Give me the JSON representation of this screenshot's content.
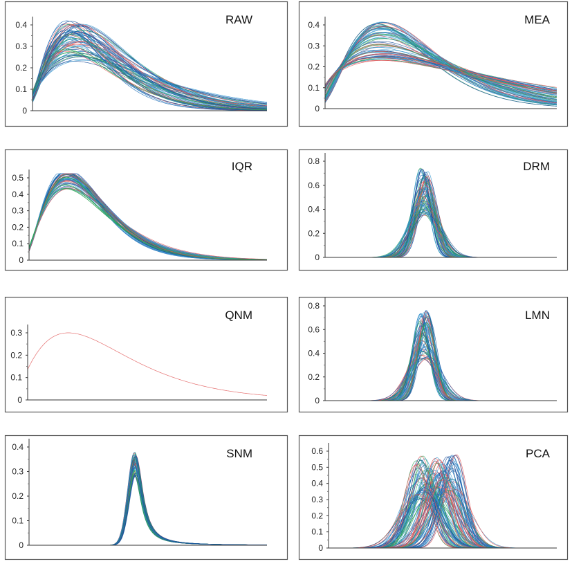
{
  "chart_data": [
    {
      "type": "line",
      "title": "RAW",
      "yticks": [
        "0",
        "0.1",
        "0.2",
        "0.3",
        "0.4"
      ],
      "ylim": [
        0,
        0.4
      ],
      "xlim": [
        0,
        1
      ],
      "grid": false,
      "legend": "none",
      "family": {
        "shape": "right-skewed",
        "n_curves": 70,
        "peak_x": [
          0.14,
          0.22
        ],
        "peak_height": [
          0.23,
          0.42
        ],
        "tail": 1.5,
        "offset": 0.03
      }
    },
    {
      "type": "line",
      "title": "MEA",
      "yticks": [
        "0",
        "0.1",
        "0.2",
        "0.3",
        "0.4"
      ],
      "ylim": [
        0,
        0.4
      ],
      "xlim": [
        0,
        1
      ],
      "grid": false,
      "legend": "none",
      "family": {
        "shape": "right-skewed",
        "n_curves": 70,
        "peak_x": [
          0.22,
          0.26
        ],
        "peak_height": [
          0.23,
          0.42
        ],
        "tail": 1.4,
        "offset": 0.04
      }
    },
    {
      "type": "line",
      "title": "IQR",
      "yticks": [
        "0",
        "0.1",
        "0.2",
        "0.3",
        "0.4",
        "0.5"
      ],
      "ylim": [
        0,
        0.5
      ],
      "xlim": [
        0,
        1
      ],
      "grid": false,
      "legend": "none",
      "family": {
        "shape": "right-skewed",
        "n_curves": 60,
        "peak_x": [
          0.15,
          0.17
        ],
        "peak_height": [
          0.43,
          0.55
        ],
        "tail": 2.0,
        "offset": 0.03
      }
    },
    {
      "type": "line",
      "title": "DRM",
      "yticks": [
        "0",
        "0.2",
        "0.4",
        "0.6",
        "0.8"
      ],
      "ylim": [
        0,
        0.8
      ],
      "xlim": [
        0,
        1
      ],
      "grid": false,
      "legend": "none",
      "family": {
        "shape": "gaussian",
        "n_curves": 70,
        "peak_x": [
          0.41,
          0.45
        ],
        "peak_height": [
          0.35,
          0.75
        ]
      }
    },
    {
      "type": "line",
      "title": "QNM",
      "yticks": [
        "0",
        "0.1",
        "0.2",
        "0.3"
      ],
      "ylim": [
        0,
        0.3
      ],
      "xlim": [
        0,
        1
      ],
      "grid": false,
      "legend": "none",
      "family": {
        "shape": "right-skewed",
        "n_curves": 1,
        "peak_x": [
          0.17,
          0.17
        ],
        "peak_height": [
          0.3,
          0.3
        ],
        "tail": 1.3,
        "offset": 0.06
      }
    },
    {
      "type": "line",
      "title": "LMN",
      "yticks": [
        "0",
        "0.2",
        "0.4",
        "0.6",
        "0.8"
      ],
      "ylim": [
        0,
        0.8
      ],
      "xlim": [
        0,
        1
      ],
      "grid": false,
      "legend": "none",
      "family": {
        "shape": "gaussian",
        "n_curves": 70,
        "peak_x": [
          0.41,
          0.45
        ],
        "peak_height": [
          0.35,
          0.77
        ]
      }
    },
    {
      "type": "line",
      "title": "SNM",
      "yticks": [
        "0",
        "0.1",
        "0.2",
        "0.3",
        "0.4"
      ],
      "ylim": [
        0,
        0.4
      ],
      "xlim": [
        0,
        1
      ],
      "grid": false,
      "legend": "none",
      "family": {
        "shape": "sharp-skewed",
        "n_curves": 60,
        "peak_x": [
          0.44,
          0.45
        ],
        "peak_height": [
          0.28,
          0.38
        ]
      }
    },
    {
      "type": "line",
      "title": "PCA",
      "yticks": [
        "0",
        "0.1",
        "0.2",
        "0.3",
        "0.4",
        "0.5",
        "0.6"
      ],
      "ylim": [
        0,
        0.6
      ],
      "xlim": [
        0,
        1
      ],
      "grid": false,
      "legend": "none",
      "family": {
        "shape": "gaussian",
        "n_curves": 110,
        "peak_x": [
          0.38,
          0.56
        ],
        "peak_height": [
          0.3,
          0.58
        ]
      }
    }
  ],
  "colors": {
    "series": [
      "#e05555",
      "#1f6fb8",
      "#2ea35a",
      "#3a9ad0",
      "#1c4f9a"
    ],
    "axis": "#333333",
    "frame": "#555555"
  }
}
